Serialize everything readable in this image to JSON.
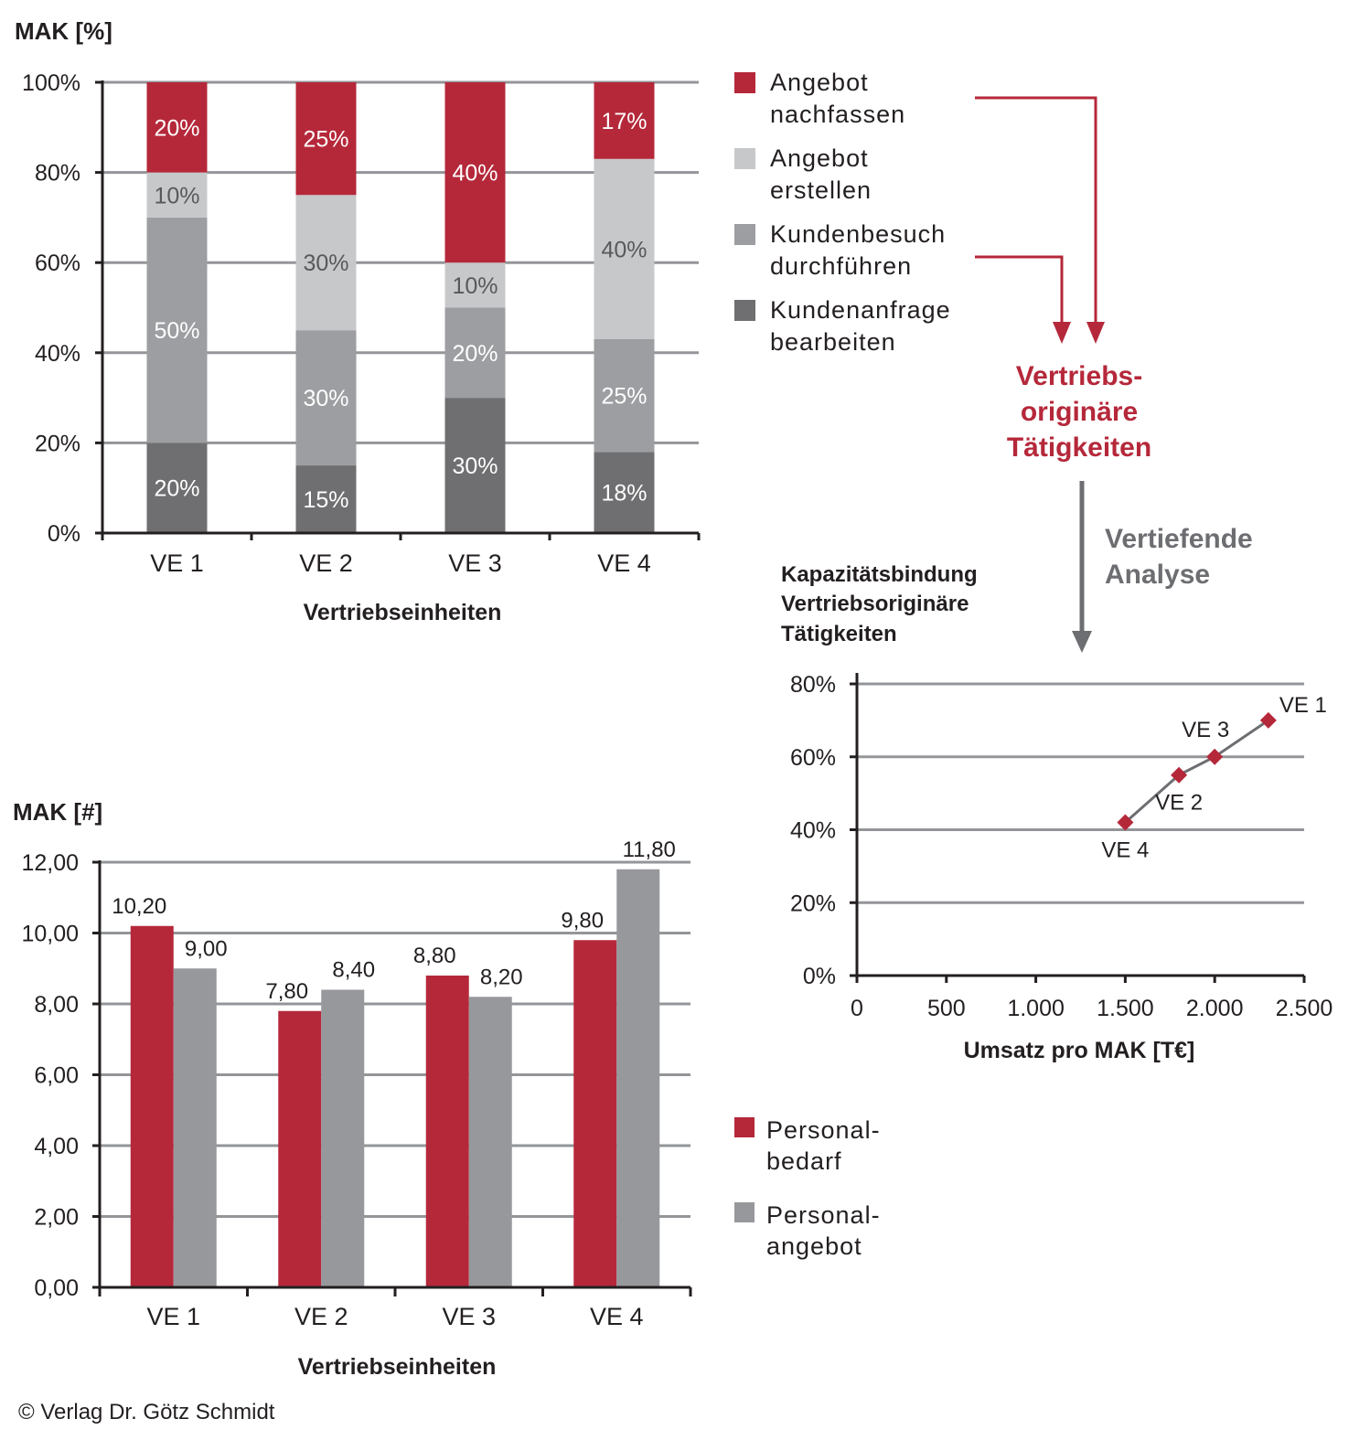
{
  "colors": {
    "red": "#b5283a",
    "light_gray": "#c7c8ca",
    "mid_gray": "#9d9ea1",
    "dark_gray": "#6f6f71",
    "bar_gray": "#97989b",
    "grid": "#939598",
    "axis": "#231f20",
    "line": "#6d6e71",
    "arrow_gray": "#6d6e71",
    "text": "#231f20",
    "label_gray": "#58595b"
  },
  "annotations": {
    "vertriebs_label": [
      "Vertriebs-",
      "originäre",
      "Tätigkeiten"
    ],
    "analyse_label": [
      "Vertiefende",
      "Analyse"
    ],
    "copyright": "© Verlag Dr. Götz Schmidt"
  },
  "chart_data": [
    {
      "id": "stacked",
      "type": "bar",
      "stacked": true,
      "title": "MAK [%]",
      "xlabel": "Vertriebseinheiten",
      "ylabel": "MAK [%]",
      "categories": [
        "VE 1",
        "VE 2",
        "VE 3",
        "VE 4"
      ],
      "ylim": [
        0,
        100
      ],
      "yticks": [
        0,
        20,
        40,
        60,
        80,
        100
      ],
      "ytick_labels": [
        "0%",
        "20%",
        "40%",
        "60%",
        "80%",
        "100%"
      ],
      "grid": true,
      "legend_position": "right",
      "series": [
        {
          "name": "Kundenanfrage bearbeiten",
          "legend": [
            "Kundenanfrage",
            "bearbeiten"
          ],
          "color_key": "dark_gray",
          "label_color": "#ffffff",
          "values": [
            20,
            15,
            30,
            18
          ],
          "labels": [
            "20%",
            "15%",
            "30%",
            "18%"
          ]
        },
        {
          "name": "Kundenbesuch durchführen",
          "legend": [
            "Kundenbesuch",
            "durchführen"
          ],
          "color_key": "mid_gray",
          "label_color": "#ffffff",
          "values": [
            50,
            30,
            20,
            25
          ],
          "labels": [
            "50%",
            "30%",
            "20%",
            "25%"
          ]
        },
        {
          "name": "Angebot erstellen",
          "legend": [
            "Angebot",
            "erstellen"
          ],
          "color_key": "light_gray",
          "label_color": "#58595b",
          "values": [
            10,
            30,
            10,
            40
          ],
          "labels": [
            "10%",
            "30%",
            "10%",
            "40%"
          ]
        },
        {
          "name": "Angebot nachfassen",
          "legend": [
            "Angebot",
            "nachfassen"
          ],
          "color_key": "red",
          "label_color": "#ffffff",
          "values": [
            20,
            25,
            40,
            17
          ],
          "labels": [
            "20%",
            "25%",
            "40%",
            "17%"
          ]
        }
      ]
    },
    {
      "id": "grouped",
      "type": "bar",
      "stacked": false,
      "title": "MAK [#]",
      "xlabel": "Vertriebseinheiten",
      "ylabel": "MAK [#]",
      "categories": [
        "VE 1",
        "VE 2",
        "VE 3",
        "VE 4"
      ],
      "ylim": [
        0,
        12
      ],
      "yticks": [
        0,
        2,
        4,
        6,
        8,
        10,
        12
      ],
      "ytick_labels": [
        "0,00",
        "2,00",
        "4,00",
        "6,00",
        "8,00",
        "10,00",
        "12,00"
      ],
      "grid": true,
      "legend_position": "right",
      "series": [
        {
          "name": "Personalbedarf",
          "legend": [
            "Personal-",
            "bedarf"
          ],
          "color_key": "red",
          "values": [
            10.2,
            7.8,
            8.8,
            9.8
          ],
          "labels": [
            "10,20",
            "7,80",
            "8,80",
            "9,80"
          ]
        },
        {
          "name": "Personalangebot",
          "legend": [
            "Personal-",
            "angebot"
          ],
          "color_key": "bar_gray",
          "values": [
            9.0,
            8.4,
            8.2,
            11.8
          ],
          "labels": [
            "9,00",
            "8,40",
            "8,20",
            "11,80"
          ]
        }
      ]
    },
    {
      "id": "scatter",
      "type": "line",
      "title": [
        "Kapazitätsbindung",
        "Vertriebsoriginäre",
        "Tätigkeiten"
      ],
      "xlabel": "Umsatz pro MAK [T€]",
      "ylabel": "",
      "xlim": [
        0,
        2500
      ],
      "xticks": [
        0,
        500,
        1000,
        1500,
        2000,
        2500
      ],
      "xtick_labels": [
        "0",
        "500",
        "1.000",
        "1.500",
        "2.000",
        "2.500"
      ],
      "ylim": [
        0,
        80
      ],
      "yticks": [
        0,
        20,
        40,
        60,
        80
      ],
      "ytick_labels": [
        "0%",
        "20%",
        "40%",
        "60%",
        "80%"
      ],
      "grid": true,
      "points": [
        {
          "label": "VE 4",
          "x": 1500,
          "y": 42,
          "label_pos": "below"
        },
        {
          "label": "VE 2",
          "x": 1800,
          "y": 55,
          "label_pos": "below"
        },
        {
          "label": "VE 3",
          "x": 2000,
          "y": 60,
          "label_pos": "above-left"
        },
        {
          "label": "VE 1",
          "x": 2300,
          "y": 70,
          "label_pos": "above-right"
        }
      ]
    }
  ]
}
